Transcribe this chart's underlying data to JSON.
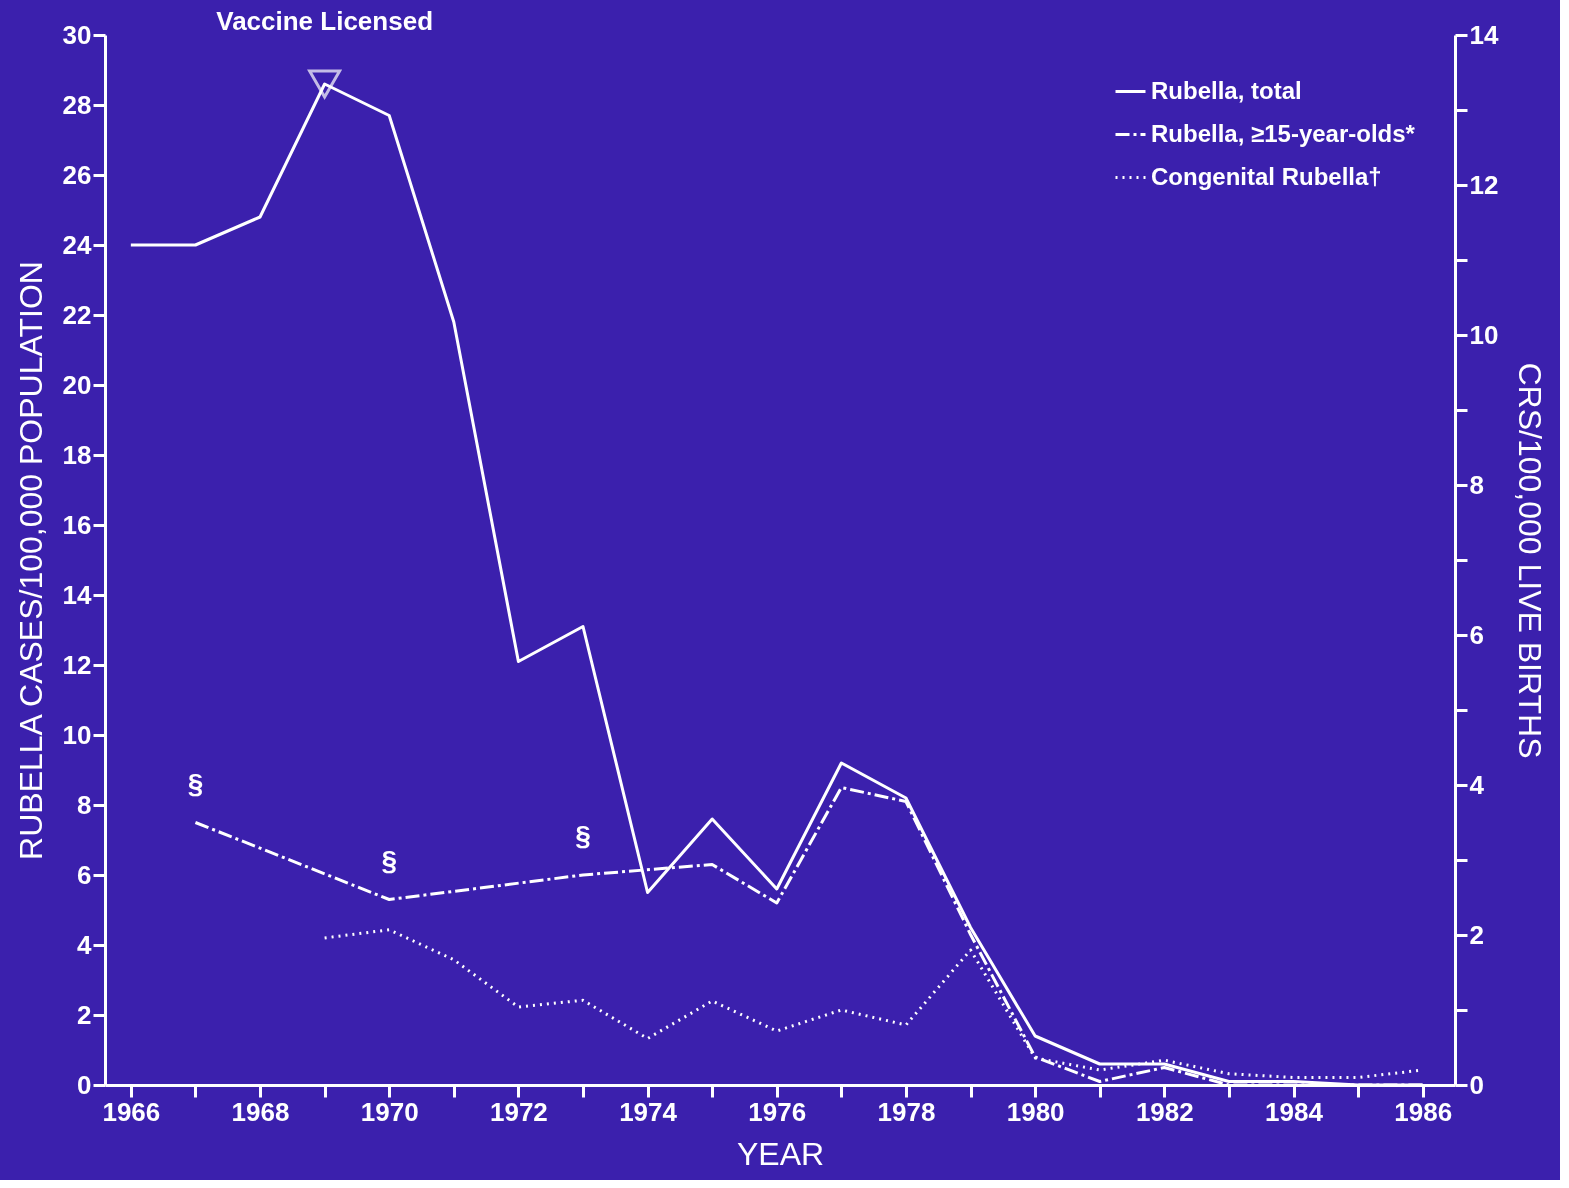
{
  "chart_data": {
    "type": "line",
    "xlabel": "YEAR",
    "ylabel": "RUBELLA CASES/100,000 POPULATION",
    "y2label": "CRS/100,000 LIVE BIRTHS",
    "xlim": [
      1965.6,
      1986.5
    ],
    "ylim": [
      0,
      30
    ],
    "y2lim": [
      0,
      14
    ],
    "xticks": [
      1966,
      {
        "value": 1967,
        "label": null
      },
      1968,
      {
        "value": 1969,
        "label": null
      },
      1970,
      {
        "value": 1971,
        "label": null
      },
      1972,
      {
        "value": 1973,
        "label": null
      },
      1974,
      {
        "value": 1975,
        "label": null
      },
      1976,
      {
        "value": 1977,
        "label": null
      },
      1978,
      {
        "value": 1979,
        "label": null
      },
      1980,
      {
        "value": 1981,
        "label": null
      },
      1982,
      {
        "value": 1983,
        "label": null
      },
      1984,
      {
        "value": 1985,
        "label": null
      },
      1986
    ],
    "yticks": [
      0,
      2,
      4,
      6,
      8,
      10,
      12,
      14,
      16,
      18,
      20,
      22,
      24,
      26,
      28,
      30
    ],
    "y2ticks": [
      0,
      {
        "value": 1,
        "label": null
      },
      2,
      {
        "value": 3,
        "label": null
      },
      4,
      {
        "value": 5,
        "label": null
      },
      6,
      {
        "value": 7,
        "label": null
      },
      8,
      {
        "value": 9,
        "label": null
      },
      10,
      {
        "value": 11,
        "label": null
      },
      12,
      {
        "value": 13,
        "label": null
      },
      14
    ],
    "grid": false,
    "legend": "top right",
    "marker": "none",
    "series": [
      {
        "name": "Rubella, total",
        "color": "#ffffff",
        "line_style": "solid",
        "x": [
          1966,
          1967,
          1968,
          1969,
          1970,
          1971,
          1972,
          1973,
          1974,
          1975,
          1976,
          1977,
          1978,
          1979,
          1980,
          1981,
          1982,
          1983,
          1984,
          1985,
          1986
        ],
        "values": [
          24,
          24,
          24.8,
          28.6,
          27.7,
          21.8,
          12.1,
          13.1,
          5.5,
          7.6,
          5.6,
          9.2,
          8.2,
          4.5,
          1.4,
          0.6,
          0.6,
          0.1,
          0.1,
          0,
          0
        ]
      },
      {
        "name": "Rubella, ≥15-year-olds*",
        "color": "#ffffff",
        "line_style": "dashed",
        "x": [
          1967,
          1970,
          1973,
          1975,
          1976,
          1977,
          1978,
          1979,
          1980,
          1981,
          1982,
          1983,
          1984,
          1985,
          1986
        ],
        "values": [
          7.5,
          5.3,
          6.0,
          6.3,
          5.2,
          8.5,
          8.1,
          4.3,
          0.8,
          0.1,
          0.5,
          0,
          0,
          0,
          0
        ]
      },
      {
        "name": "Congenital Rubella†",
        "color": "#ffffff",
        "line_style": "dotted",
        "axis": "y2",
        "x": [
          1969,
          1970,
          1971,
          1972,
          1973,
          1974,
          1975,
          1976,
          1977,
          1978,
          1979,
          1980,
          1981,
          1982,
          1983,
          1984,
          1985,
          1986
        ],
        "values": [
          1.96,
          2.07,
          1.67,
          1.04,
          1.13,
          0.62,
          1.12,
          0.72,
          1.0,
          0.8,
          1.8,
          0.36,
          0.2,
          0.33,
          0.15,
          0.1,
          0.1,
          0.2
        ]
      }
    ],
    "annotations": [
      {
        "text": "Vaccine Licensed",
        "x": 1969,
        "y": 28.6
      },
      {
        "text": "§",
        "x": 1967,
        "y": 7.5
      },
      {
        "text": "§",
        "x": 1970,
        "y": 5.3
      },
      {
        "text": "§",
        "x": 1973,
        "y": 6.0
      }
    ]
  }
}
